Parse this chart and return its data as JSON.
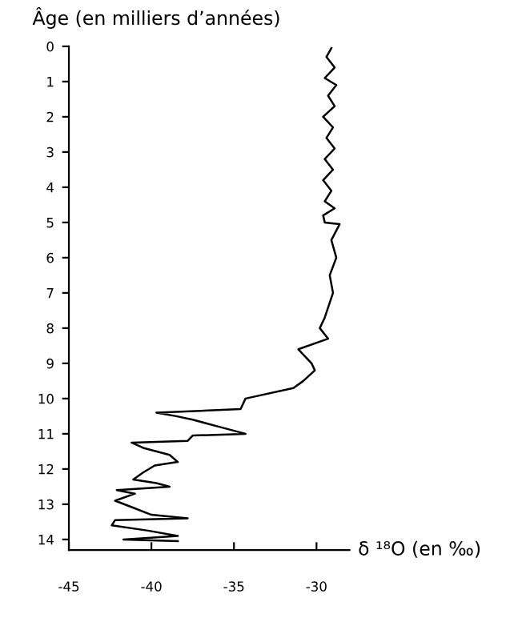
{
  "chart_data": {
    "type": "line",
    "xlabel": "δ ¹⁸O (en ‰)",
    "ylabel": "Âge (en milliers d’années)",
    "series": [
      {
        "color": "#000000",
        "x": [
          -29.1,
          -29.4,
          -28.9,
          -29.5,
          -28.8,
          -29.3,
          -28.9,
          -29.6,
          -29.0,
          -29.4,
          -28.9,
          -29.5,
          -29.0,
          -29.6,
          -29.1,
          -29.5,
          -28.9,
          -29.6,
          -29.5,
          -28.6,
          -29.1,
          -28.8,
          -29.2,
          -29.0,
          -29.5,
          -29.8,
          -29.3,
          -31.1,
          -30.3,
          -30.1,
          -30.8,
          -31.4,
          -34.3,
          -34.6,
          -39.7,
          -38.5,
          -37.5,
          -35.9,
          -34.3,
          -37.5,
          -37.8,
          -41.2,
          -40.5,
          -38.9,
          -38.4,
          -39.8,
          -40.5,
          -41.1,
          -39.7,
          -38.9,
          -42.1,
          -41.0,
          -42.2,
          -41.1,
          -40.0,
          -37.8,
          -42.2,
          -42.4,
          -40.2,
          -38.4,
          -41.7,
          -38.4
        ],
        "values": [
          0.05,
          0.3,
          0.6,
          0.9,
          1.1,
          1.4,
          1.7,
          2.0,
          2.3,
          2.6,
          2.9,
          3.2,
          3.5,
          3.8,
          4.1,
          4.4,
          4.6,
          4.8,
          5.0,
          5.05,
          5.5,
          6.0,
          6.5,
          7.0,
          7.7,
          8.0,
          8.3,
          8.6,
          9.0,
          9.2,
          9.5,
          9.7,
          10.0,
          10.3,
          10.4,
          10.5,
          10.6,
          10.8,
          11.0,
          11.05,
          11.2,
          11.25,
          11.4,
          11.6,
          11.8,
          11.9,
          12.1,
          12.3,
          12.4,
          12.5,
          12.6,
          12.7,
          12.9,
          13.1,
          13.3,
          13.4,
          13.45,
          13.6,
          13.75,
          13.9,
          14.0,
          14.05
        ]
      }
    ],
    "xlim": [
      -45,
      -28
    ],
    "xticks": [
      -45,
      -40,
      -35,
      -30
    ],
    "ylim": [
      14.3,
      0
    ],
    "yticks": [
      0,
      1,
      2,
      3,
      4,
      5,
      6,
      7,
      8,
      9,
      10,
      11,
      12,
      13,
      14
    ],
    "grid": false,
    "legend": false
  }
}
